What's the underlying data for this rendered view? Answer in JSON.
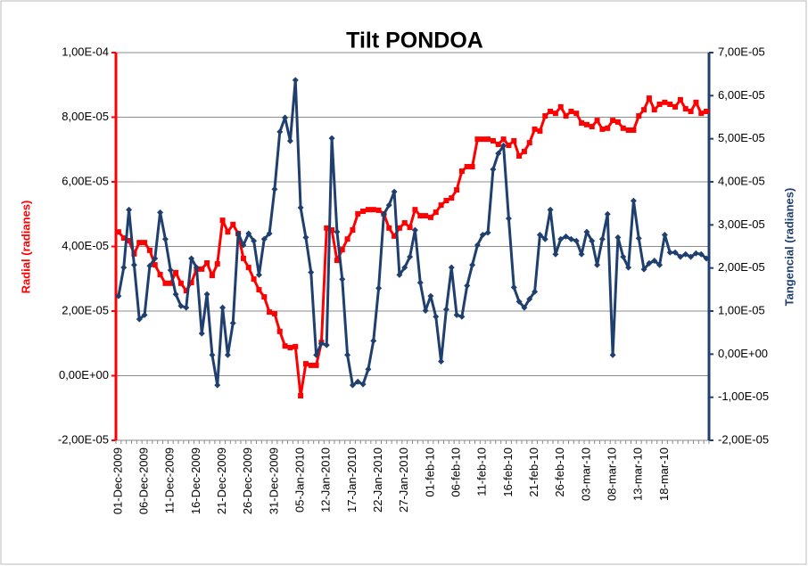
{
  "chart_data": {
    "type": "line",
    "title": "Tilt  PONDOA",
    "y_label": "Radial (radianes)",
    "y2_label": "Tangencial (radianes)",
    "categories": [
      "01-Dec-2009",
      null,
      null,
      null,
      null,
      "06-Dec-2009",
      null,
      null,
      null,
      null,
      "11-Dec-2009",
      null,
      null,
      null,
      null,
      "16-Dec-2009",
      null,
      null,
      null,
      null,
      "21-Dec-2009",
      null,
      null,
      null,
      null,
      "26-Dec-2009",
      null,
      null,
      null,
      null,
      "31-Dec-2009",
      null,
      null,
      null,
      null,
      "05-Jan-2010",
      null,
      null,
      null,
      null,
      "12-Jan-2010",
      null,
      null,
      null,
      null,
      "17-Jan-2010",
      null,
      null,
      null,
      null,
      "22-Jan-2010",
      null,
      null,
      null,
      null,
      "27-Jan-2010",
      null,
      null,
      null,
      null,
      "01-feb-10",
      null,
      null,
      null,
      null,
      "06-feb-10",
      null,
      null,
      null,
      null,
      "11-feb-10",
      null,
      null,
      null,
      null,
      "16-feb-10",
      null,
      null,
      null,
      null,
      "21-feb-10",
      null,
      null,
      null,
      null,
      "26-feb-10",
      null,
      null,
      null,
      null,
      "03-mar-10",
      null,
      null,
      null,
      null,
      "08-mar-10",
      null,
      null,
      null,
      null,
      "13-mar-10",
      null,
      null,
      null,
      null,
      "18-mar-10",
      null,
      null,
      null,
      null,
      null,
      null,
      null,
      null
    ],
    "series": [
      {
        "name": "Radial (radianes)",
        "color": "#ff0000",
        "axis": "y",
        "marker": "square",
        "values": [
          4.45e-05,
          4.26e-05,
          4.18e-05,
          3.77e-05,
          4.12e-05,
          4.12e-05,
          3.88e-05,
          3.43e-05,
          3.13e-05,
          2.86e-05,
          2.86e-05,
          3.19e-05,
          2.86e-05,
          2.63e-05,
          2.88e-05,
          3.3e-05,
          3.3e-05,
          3.49e-05,
          3.1e-05,
          3.46e-05,
          4.81e-05,
          4.45e-05,
          4.68e-05,
          4.4e-05,
          3.63e-05,
          3.35e-05,
          2.99e-05,
          2.66e-05,
          2.44e-05,
          1.97e-05,
          1.92e-05,
          1.37e-05,
          9.2e-06,
          8.7e-06,
          9e-06,
          -6.2e-06,
          3.7e-06,
          3.2e-06,
          3.2e-06,
          1.03e-05,
          4.57e-05,
          4.51e-05,
          3.57e-05,
          3.9e-05,
          4.23e-05,
          4.51e-05,
          5.01e-05,
          5.09e-05,
          5.14e-05,
          5.14e-05,
          5.12e-05,
          5.01e-05,
          4.57e-05,
          4.32e-05,
          4.57e-05,
          4.73e-05,
          4.59e-05,
          5.14e-05,
          4.95e-05,
          4.95e-05,
          4.9e-05,
          5.06e-05,
          5.28e-05,
          5.42e-05,
          5.5e-05,
          5.75e-05,
          6.33e-05,
          6.47e-05,
          6.47e-05,
          7.32e-05,
          7.32e-05,
          7.32e-05,
          7.27e-05,
          7.16e-05,
          7.32e-05,
          7.13e-05,
          7.27e-05,
          6.8e-05,
          6.94e-05,
          7.21e-05,
          7.63e-05,
          7.57e-05,
          8.04e-05,
          8.18e-05,
          8.12e-05,
          8.32e-05,
          8.04e-05,
          8.18e-05,
          8.12e-05,
          7.82e-05,
          7.77e-05,
          7.71e-05,
          7.9e-05,
          7.63e-05,
          7.66e-05,
          7.9e-05,
          7.85e-05,
          7.66e-05,
          7.6e-05,
          7.6e-05,
          8.04e-05,
          8.23e-05,
          8.59e-05,
          8.23e-05,
          8.4e-05,
          8.46e-05,
          8.4e-05,
          8.32e-05,
          8.54e-05,
          8.26e-05,
          8.18e-05,
          8.46e-05,
          8.12e-05,
          8.18e-05
        ]
      },
      {
        "name": "Tangencial (radianes)",
        "color": "#1f3f6e",
        "axis": "y2",
        "marker": "diamond",
        "values": [
          1.35e-05,
          2.01e-05,
          3.35e-05,
          2.07e-05,
          8.1e-06,
          9.1e-06,
          2.05e-05,
          2.22e-05,
          3.29e-05,
          2.67e-05,
          1.95e-05,
          1.39e-05,
          1.12e-05,
          1.08e-05,
          2.22e-05,
          2.01e-05,
          4.8e-06,
          1.39e-05,
          -2e-07,
          -7.2e-06,
          1.08e-05,
          -2e-07,
          7.2e-06,
          2.8e-05,
          2.53e-05,
          2.8e-05,
          2.63e-05,
          1.84e-05,
          2.67e-05,
          2.8e-05,
          3.83e-05,
          5.16e-05,
          5.49e-05,
          4.95e-05,
          6.36e-05,
          3.4e-05,
          2.71e-05,
          1.9e-05,
          -2e-07,
          2.5e-06,
          2.1e-06,
          5.01e-05,
          2.84e-05,
          1.74e-05,
          -2e-07,
          -7.2e-06,
          -6.4e-06,
          -7e-06,
          -3.5e-06,
          3.1e-06,
          1.53e-05,
          3.25e-05,
          3.46e-05,
          3.77e-05,
          1.84e-05,
          2.01e-05,
          2.26e-05,
          2.88e-05,
          1.66e-05,
          1.01e-05,
          1.35e-05,
          8.7e-06,
          -1.7e-06,
          1.04e-05,
          2.01e-05,
          9.1e-06,
          8.7e-06,
          1.59e-05,
          2.07e-05,
          2.53e-05,
          2.77e-05,
          2.82e-05,
          4.29e-05,
          4.66e-05,
          4.84e-05,
          3.15e-05,
          1.55e-05,
          1.22e-05,
          1.08e-05,
          1.28e-05,
          1.45e-05,
          2.77e-05,
          2.67e-05,
          3.35e-05,
          2.32e-05,
          2.67e-05,
          2.73e-05,
          2.67e-05,
          2.63e-05,
          2.32e-05,
          2.84e-05,
          2.63e-05,
          2.07e-05,
          2.67e-05,
          3.25e-05,
          -2e-07,
          2.71e-05,
          2.26e-05,
          2.01e-05,
          3.56e-05,
          2.69e-05,
          1.97e-05,
          2.11e-05,
          2.17e-05,
          2.07e-05,
          2.77e-05,
          2.36e-05,
          2.36e-05,
          2.26e-05,
          2.32e-05,
          2.26e-05,
          2.34e-05,
          2.32e-05,
          2.22e-05
        ]
      }
    ],
    "ylim": [
      -2e-05,
      0.0001
    ],
    "yticks": [
      {
        "value": -2e-05,
        "label": "-2,00E-05"
      },
      {
        "value": 0,
        "label": "0,00E+00"
      },
      {
        "value": 2e-05,
        "label": "2,00E-05"
      },
      {
        "value": 4e-05,
        "label": "4,00E-05"
      },
      {
        "value": 6e-05,
        "label": "6,00E-05"
      },
      {
        "value": 8e-05,
        "label": "8,00E-05"
      },
      {
        "value": 0.0001,
        "label": "1,00E-04"
      }
    ],
    "y2lim": [
      -2e-05,
      7e-05
    ],
    "y2ticks": [
      {
        "value": -2e-05,
        "label": "-2,00E-05"
      },
      {
        "value": -1e-05,
        "label": "-1,00E-05"
      },
      {
        "value": 0,
        "label": "0,00E+00"
      },
      {
        "value": 1e-05,
        "label": "1,00E-05"
      },
      {
        "value": 2e-05,
        "label": "2,00E-05"
      },
      {
        "value": 3e-05,
        "label": "3,00E-05"
      },
      {
        "value": 4e-05,
        "label": "4,00E-05"
      },
      {
        "value": 5e-05,
        "label": "5,00E-05"
      },
      {
        "value": 6e-05,
        "label": "6,00E-05"
      },
      {
        "value": 7e-05,
        "label": "7,00E-05"
      }
    ],
    "grid": true,
    "y_axis_color": "#ff0000",
    "y2_axis_color": "#1f3f6e"
  }
}
